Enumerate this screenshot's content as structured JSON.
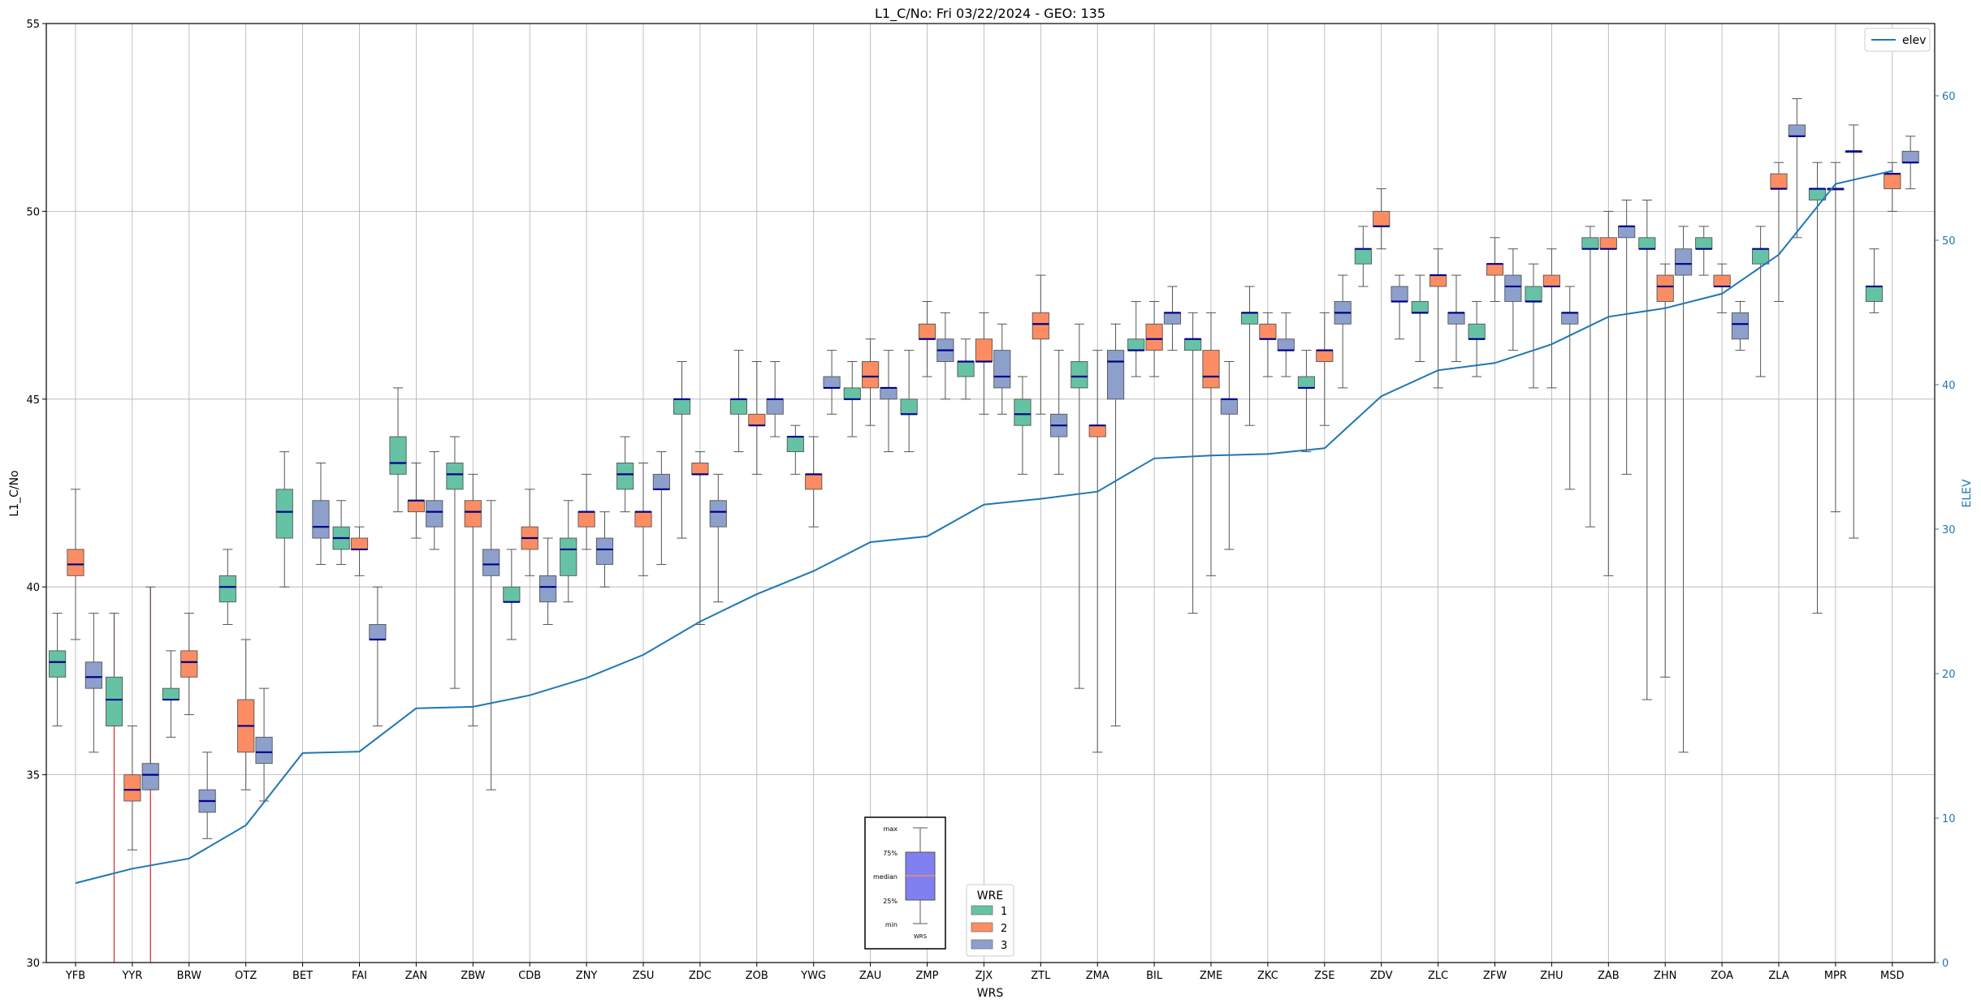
{
  "chart_data": {
    "type": "box",
    "title": "L1_C/No: Fri 03/22/2024 - GEO: 135",
    "xlabel": "WRS",
    "ylabel": "L1_C/No",
    "y2label": "ELEV",
    "ylim": [
      30,
      55
    ],
    "y2lim": [
      0,
      65
    ],
    "yticks": [
      30,
      35,
      40,
      45,
      50,
      55
    ],
    "y2ticks": [
      0,
      10,
      20,
      30,
      40,
      50,
      60
    ],
    "grid": true,
    "categories": [
      "YFB",
      "YYR",
      "BRW",
      "OTZ",
      "BET",
      "FAI",
      "ZAN",
      "ZBW",
      "CDB",
      "ZNY",
      "ZSU",
      "ZDC",
      "ZOB",
      "YWG",
      "ZAU",
      "ZMP",
      "ZJX",
      "ZTL",
      "ZMA",
      "BIL",
      "ZME",
      "ZKC",
      "ZSE",
      "ZDV",
      "ZLC",
      "ZFW",
      "ZHU",
      "ZAB",
      "ZHN",
      "ZOA",
      "ZLA",
      "MPR",
      "MSD"
    ],
    "colors": {
      "1": "#66c2a5",
      "2": "#fc8d62",
      "3": "#8da0cb",
      "median": "#00008b",
      "elev": "#1f77b4",
      "outlier_line": "#d62728"
    },
    "legend_wre": {
      "title": "WRE",
      "entries": [
        "1",
        "2",
        "3"
      ],
      "position": "lower-center"
    },
    "legend_elev": {
      "label": "elev",
      "position": "top-right"
    },
    "inset_key": {
      "labels": [
        "max",
        "75%",
        "median",
        "25%",
        "min"
      ],
      "xlabel": "WRS",
      "position": "lower-center"
    },
    "elev_series": {
      "name": "elev",
      "values": [
        5.5,
        6.5,
        7.2,
        9.5,
        14.5,
        14.6,
        17.6,
        17.7,
        18.5,
        19.7,
        21.3,
        23.6,
        25.5,
        27.1,
        29.1,
        29.5,
        31.7,
        32.1,
        32.6,
        34.9,
        35.1,
        35.2,
        35.6,
        39.2,
        41.0,
        41.5,
        42.8,
        44.7,
        45.3,
        46.3,
        49.0,
        53.9,
        54.8
      ]
    },
    "boxes": [
      {
        "station": "YFB",
        "wre": 1,
        "min": 36.3,
        "q1": 37.6,
        "median": 38.0,
        "q3": 38.3,
        "max": 39.3
      },
      {
        "station": "YFB",
        "wre": 2,
        "min": 38.6,
        "q1": 40.3,
        "median": 40.6,
        "q3": 41.0,
        "max": 42.6
      },
      {
        "station": "YFB",
        "wre": 3,
        "min": 35.6,
        "q1": 37.3,
        "median": 37.6,
        "q3": 38.0,
        "max": 39.3
      },
      {
        "station": "YYR",
        "wre": 1,
        "min": 36.3,
        "q1": 36.3,
        "median": 37.0,
        "q3": 37.6,
        "max": 39.3,
        "outlier_line": [
          30.0,
          39.3
        ]
      },
      {
        "station": "YYR",
        "wre": 2,
        "min": 33.0,
        "q1": 34.3,
        "median": 34.6,
        "q3": 35.0,
        "max": 36.3
      },
      {
        "station": "YYR",
        "wre": 3,
        "min": 34.6,
        "q1": 34.6,
        "median": 35.0,
        "q3": 35.3,
        "max": 40.0,
        "outlier_line": [
          30.0,
          40.0
        ]
      },
      {
        "station": "BRW",
        "wre": 1,
        "min": 36.0,
        "q1": 37.0,
        "median": 37.0,
        "q3": 37.3,
        "max": 38.3
      },
      {
        "station": "BRW",
        "wre": 2,
        "min": 36.6,
        "q1": 37.6,
        "median": 38.0,
        "q3": 38.3,
        "max": 39.3
      },
      {
        "station": "BRW",
        "wre": 3,
        "min": 33.3,
        "q1": 34.0,
        "median": 34.3,
        "q3": 34.6,
        "max": 35.6
      },
      {
        "station": "OTZ",
        "wre": 1,
        "min": 39.0,
        "q1": 39.6,
        "median": 40.0,
        "q3": 40.3,
        "max": 41.0
      },
      {
        "station": "OTZ",
        "wre": 2,
        "min": 34.6,
        "q1": 35.6,
        "median": 36.3,
        "q3": 37.0,
        "max": 38.6
      },
      {
        "station": "OTZ",
        "wre": 3,
        "min": 34.3,
        "q1": 35.3,
        "median": 35.6,
        "q3": 36.0,
        "max": 37.3
      },
      {
        "station": "BET",
        "wre": 1,
        "min": 40.0,
        "q1": 41.3,
        "median": 42.0,
        "q3": 42.6,
        "max": 43.6
      },
      {
        "station": "BET",
        "wre": 3,
        "min": 40.6,
        "q1": 41.3,
        "median": 41.6,
        "q3": 42.3,
        "max": 43.3
      },
      {
        "station": "FAI",
        "wre": 1,
        "min": 40.6,
        "q1": 41.0,
        "median": 41.3,
        "q3": 41.6,
        "max": 42.3
      },
      {
        "station": "FAI",
        "wre": 2,
        "min": 40.3,
        "q1": 41.0,
        "median": 41.0,
        "q3": 41.3,
        "max": 41.6
      },
      {
        "station": "FAI",
        "wre": 3,
        "min": 36.3,
        "q1": 38.6,
        "median": 38.6,
        "q3": 39.0,
        "max": 40.0
      },
      {
        "station": "ZAN",
        "wre": 1,
        "min": 42.0,
        "q1": 43.0,
        "median": 43.3,
        "q3": 44.0,
        "max": 45.3
      },
      {
        "station": "ZAN",
        "wre": 2,
        "min": 41.3,
        "q1": 42.0,
        "median": 42.3,
        "q3": 42.3,
        "max": 43.3
      },
      {
        "station": "ZAN",
        "wre": 3,
        "min": 41.0,
        "q1": 41.6,
        "median": 42.0,
        "q3": 42.3,
        "max": 43.6
      },
      {
        "station": "ZBW",
        "wre": 1,
        "min": 37.3,
        "q1": 42.6,
        "median": 43.0,
        "q3": 43.3,
        "max": 44.0
      },
      {
        "station": "ZBW",
        "wre": 2,
        "min": 36.3,
        "q1": 41.6,
        "median": 42.0,
        "q3": 42.3,
        "max": 43.0
      },
      {
        "station": "ZBW",
        "wre": 3,
        "min": 34.6,
        "q1": 40.3,
        "median": 40.6,
        "q3": 41.0,
        "max": 42.3
      },
      {
        "station": "CDB",
        "wre": 1,
        "min": 38.6,
        "q1": 39.6,
        "median": 39.6,
        "q3": 40.0,
        "max": 41.0
      },
      {
        "station": "CDB",
        "wre": 2,
        "min": 40.3,
        "q1": 41.0,
        "median": 41.3,
        "q3": 41.6,
        "max": 42.6
      },
      {
        "station": "CDB",
        "wre": 3,
        "min": 39.0,
        "q1": 39.6,
        "median": 40.0,
        "q3": 40.3,
        "max": 41.3
      },
      {
        "station": "ZNY",
        "wre": 1,
        "min": 39.6,
        "q1": 40.3,
        "median": 41.0,
        "q3": 41.3,
        "max": 42.3
      },
      {
        "station": "ZNY",
        "wre": 2,
        "min": 41.0,
        "q1": 41.6,
        "median": 42.0,
        "q3": 42.0,
        "max": 43.0
      },
      {
        "station": "ZNY",
        "wre": 3,
        "min": 40.0,
        "q1": 40.6,
        "median": 41.0,
        "q3": 41.3,
        "max": 42.0
      },
      {
        "station": "ZSU",
        "wre": 1,
        "min": 42.0,
        "q1": 42.6,
        "median": 43.0,
        "q3": 43.3,
        "max": 44.0
      },
      {
        "station": "ZSU",
        "wre": 2,
        "min": 40.3,
        "q1": 41.6,
        "median": 42.0,
        "q3": 42.0,
        "max": 43.3
      },
      {
        "station": "ZSU",
        "wre": 3,
        "min": 40.6,
        "q1": 42.6,
        "median": 42.6,
        "q3": 43.0,
        "max": 43.6
      },
      {
        "station": "ZDC",
        "wre": 1,
        "min": 41.3,
        "q1": 44.6,
        "median": 45.0,
        "q3": 45.0,
        "max": 46.0
      },
      {
        "station": "ZDC",
        "wre": 2,
        "min": 39.0,
        "q1": 43.0,
        "median": 43.0,
        "q3": 43.3,
        "max": 43.6
      },
      {
        "station": "ZDC",
        "wre": 3,
        "min": 39.6,
        "q1": 41.6,
        "median": 42.0,
        "q3": 42.3,
        "max": 43.0
      },
      {
        "station": "ZOB",
        "wre": 1,
        "min": 43.6,
        "q1": 44.6,
        "median": 45.0,
        "q3": 45.0,
        "max": 46.3
      },
      {
        "station": "ZOB",
        "wre": 2,
        "min": 43.0,
        "q1": 44.3,
        "median": 44.3,
        "q3": 44.6,
        "max": 46.0
      },
      {
        "station": "ZOB",
        "wre": 3,
        "min": 44.0,
        "q1": 44.6,
        "median": 45.0,
        "q3": 45.0,
        "max": 46.0
      },
      {
        "station": "YWG",
        "wre": 1,
        "min": 43.0,
        "q1": 43.6,
        "median": 44.0,
        "q3": 44.0,
        "max": 44.3
      },
      {
        "station": "YWG",
        "wre": 2,
        "min": 41.6,
        "q1": 42.6,
        "median": 43.0,
        "q3": 43.0,
        "max": 44.0
      },
      {
        "station": "YWG",
        "wre": 3,
        "min": 44.6,
        "q1": 45.3,
        "median": 45.3,
        "q3": 45.6,
        "max": 46.3
      },
      {
        "station": "ZAU",
        "wre": 1,
        "min": 44.0,
        "q1": 45.0,
        "median": 45.0,
        "q3": 45.3,
        "max": 46.0
      },
      {
        "station": "ZAU",
        "wre": 2,
        "min": 44.3,
        "q1": 45.3,
        "median": 45.6,
        "q3": 46.0,
        "max": 46.6
      },
      {
        "station": "ZAU",
        "wre": 3,
        "min": 43.6,
        "q1": 45.0,
        "median": 45.3,
        "q3": 45.3,
        "max": 46.3
      },
      {
        "station": "ZMP",
        "wre": 1,
        "min": 43.6,
        "q1": 44.6,
        "median": 44.6,
        "q3": 45.0,
        "max": 46.3
      },
      {
        "station": "ZMP",
        "wre": 2,
        "min": 45.6,
        "q1": 46.6,
        "median": 46.6,
        "q3": 47.0,
        "max": 47.6
      },
      {
        "station": "ZMP",
        "wre": 3,
        "min": 45.0,
        "q1": 46.0,
        "median": 46.3,
        "q3": 46.6,
        "max": 47.3
      },
      {
        "station": "ZJX",
        "wre": 1,
        "min": 45.0,
        "q1": 45.6,
        "median": 46.0,
        "q3": 46.0,
        "max": 46.6
      },
      {
        "station": "ZJX",
        "wre": 2,
        "min": 44.6,
        "q1": 46.0,
        "median": 46.0,
        "q3": 46.6,
        "max": 47.3
      },
      {
        "station": "ZJX",
        "wre": 3,
        "min": 44.6,
        "q1": 45.3,
        "median": 45.6,
        "q3": 46.3,
        "max": 47.0
      },
      {
        "station": "ZTL",
        "wre": 1,
        "min": 43.0,
        "q1": 44.3,
        "median": 44.6,
        "q3": 45.0,
        "max": 45.6
      },
      {
        "station": "ZTL",
        "wre": 2,
        "min": 44.6,
        "q1": 46.6,
        "median": 47.0,
        "q3": 47.3,
        "max": 48.3
      },
      {
        "station": "ZTL",
        "wre": 3,
        "min": 43.0,
        "q1": 44.0,
        "median": 44.3,
        "q3": 44.6,
        "max": 46.3
      },
      {
        "station": "ZMA",
        "wre": 1,
        "min": 37.3,
        "q1": 45.3,
        "median": 45.6,
        "q3": 46.0,
        "max": 47.0
      },
      {
        "station": "ZMA",
        "wre": 2,
        "min": 35.6,
        "q1": 44.0,
        "median": 44.3,
        "q3": 44.3,
        "max": 46.3
      },
      {
        "station": "ZMA",
        "wre": 3,
        "min": 36.3,
        "q1": 45.0,
        "median": 46.0,
        "q3": 46.3,
        "max": 47.0
      },
      {
        "station": "BIL",
        "wre": 1,
        "min": 45.6,
        "q1": 46.3,
        "median": 46.3,
        "q3": 46.6,
        "max": 47.6
      },
      {
        "station": "BIL",
        "wre": 2,
        "min": 45.6,
        "q1": 46.3,
        "median": 46.6,
        "q3": 47.0,
        "max": 47.6
      },
      {
        "station": "BIL",
        "wre": 3,
        "min": 46.3,
        "q1": 47.0,
        "median": 47.3,
        "q3": 47.3,
        "max": 48.0
      },
      {
        "station": "ZME",
        "wre": 1,
        "min": 39.3,
        "q1": 46.3,
        "median": 46.6,
        "q3": 46.6,
        "max": 47.3
      },
      {
        "station": "ZME",
        "wre": 2,
        "min": 40.3,
        "q1": 45.3,
        "median": 45.6,
        "q3": 46.3,
        "max": 47.3
      },
      {
        "station": "ZME",
        "wre": 3,
        "min": 41.0,
        "q1": 44.6,
        "median": 45.0,
        "q3": 45.0,
        "max": 46.0
      },
      {
        "station": "ZKC",
        "wre": 1,
        "min": 44.3,
        "q1": 47.0,
        "median": 47.3,
        "q3": 47.3,
        "max": 48.0
      },
      {
        "station": "ZKC",
        "wre": 2,
        "min": 45.6,
        "q1": 46.6,
        "median": 46.6,
        "q3": 47.0,
        "max": 47.3
      },
      {
        "station": "ZKC",
        "wre": 3,
        "min": 45.6,
        "q1": 46.3,
        "median": 46.3,
        "q3": 46.6,
        "max": 47.3
      },
      {
        "station": "ZSE",
        "wre": 1,
        "min": 43.6,
        "q1": 45.3,
        "median": 45.3,
        "q3": 45.6,
        "max": 46.3
      },
      {
        "station": "ZSE",
        "wre": 2,
        "min": 44.3,
        "q1": 46.0,
        "median": 46.3,
        "q3": 46.3,
        "max": 47.3
      },
      {
        "station": "ZSE",
        "wre": 3,
        "min": 45.3,
        "q1": 47.0,
        "median": 47.3,
        "q3": 47.6,
        "max": 48.3
      },
      {
        "station": "ZDV",
        "wre": 1,
        "min": 48.0,
        "q1": 48.6,
        "median": 49.0,
        "q3": 49.0,
        "max": 49.6
      },
      {
        "station": "ZDV",
        "wre": 2,
        "min": 49.0,
        "q1": 49.6,
        "median": 49.6,
        "q3": 50.0,
        "max": 50.6
      },
      {
        "station": "ZDV",
        "wre": 3,
        "min": 46.6,
        "q1": 47.6,
        "median": 47.6,
        "q3": 48.0,
        "max": 48.3
      },
      {
        "station": "ZLC",
        "wre": 1,
        "min": 46.0,
        "q1": 47.3,
        "median": 47.3,
        "q3": 47.6,
        "max": 48.3
      },
      {
        "station": "ZLC",
        "wre": 2,
        "min": 45.3,
        "q1": 48.0,
        "median": 48.3,
        "q3": 48.3,
        "max": 49.0
      },
      {
        "station": "ZLC",
        "wre": 3,
        "min": 46.0,
        "q1": 47.0,
        "median": 47.3,
        "q3": 47.3,
        "max": 48.3
      },
      {
        "station": "ZFW",
        "wre": 1,
        "min": 45.6,
        "q1": 46.6,
        "median": 46.6,
        "q3": 47.0,
        "max": 47.6
      },
      {
        "station": "ZFW",
        "wre": 2,
        "min": 47.6,
        "q1": 48.3,
        "median": 48.6,
        "q3": 48.6,
        "max": 49.3
      },
      {
        "station": "ZFW",
        "wre": 3,
        "min": 46.3,
        "q1": 47.6,
        "median": 48.0,
        "q3": 48.3,
        "max": 49.0
      },
      {
        "station": "ZHU",
        "wre": 1,
        "min": 45.3,
        "q1": 47.6,
        "median": 47.6,
        "q3": 48.0,
        "max": 48.6
      },
      {
        "station": "ZHU",
        "wre": 2,
        "min": 45.3,
        "q1": 48.0,
        "median": 48.0,
        "q3": 48.3,
        "max": 49.0
      },
      {
        "station": "ZHU",
        "wre": 3,
        "min": 42.6,
        "q1": 47.0,
        "median": 47.3,
        "q3": 47.3,
        "max": 48.0
      },
      {
        "station": "ZAB",
        "wre": 1,
        "min": 41.6,
        "q1": 49.0,
        "median": 49.0,
        "q3": 49.3,
        "max": 49.6
      },
      {
        "station": "ZAB",
        "wre": 2,
        "min": 40.3,
        "q1": 49.0,
        "median": 49.0,
        "q3": 49.3,
        "max": 50.0
      },
      {
        "station": "ZAB",
        "wre": 3,
        "min": 43.0,
        "q1": 49.3,
        "median": 49.6,
        "q3": 49.6,
        "max": 50.3
      },
      {
        "station": "ZHN",
        "wre": 1,
        "min": 37.0,
        "q1": 49.0,
        "median": 49.0,
        "q3": 49.3,
        "max": 50.3
      },
      {
        "station": "ZHN",
        "wre": 2,
        "min": 37.6,
        "q1": 47.6,
        "median": 48.0,
        "q3": 48.3,
        "max": 48.6
      },
      {
        "station": "ZHN",
        "wre": 3,
        "min": 35.6,
        "q1": 48.3,
        "median": 48.6,
        "q3": 49.0,
        "max": 49.6
      },
      {
        "station": "ZOA",
        "wre": 1,
        "min": 48.3,
        "q1": 49.0,
        "median": 49.0,
        "q3": 49.3,
        "max": 49.6
      },
      {
        "station": "ZOA",
        "wre": 2,
        "min": 47.3,
        "q1": 48.0,
        "median": 48.0,
        "q3": 48.3,
        "max": 48.6
      },
      {
        "station": "ZOA",
        "wre": 3,
        "min": 46.3,
        "q1": 46.6,
        "median": 47.0,
        "q3": 47.3,
        "max": 47.6
      },
      {
        "station": "ZLA",
        "wre": 1,
        "min": 45.6,
        "q1": 48.6,
        "median": 49.0,
        "q3": 49.0,
        "max": 49.6
      },
      {
        "station": "ZLA",
        "wre": 2,
        "min": 47.6,
        "q1": 50.6,
        "median": 50.6,
        "q3": 51.0,
        "max": 51.3
      },
      {
        "station": "ZLA",
        "wre": 3,
        "min": 49.3,
        "q1": 52.0,
        "median": 52.0,
        "q3": 52.3,
        "max": 53.0
      },
      {
        "station": "MPR",
        "wre": 1,
        "min": 39.3,
        "q1": 50.3,
        "median": 50.6,
        "q3": 50.6,
        "max": 51.3
      },
      {
        "station": "MPR",
        "wre": 2,
        "min": 42.0,
        "q1": 50.6,
        "median": 50.6,
        "q3": 50.6,
        "max": 51.3
      },
      {
        "station": "MPR",
        "wre": 3,
        "min": 41.3,
        "q1": 51.6,
        "median": 51.6,
        "q3": 51.6,
        "max": 52.3
      },
      {
        "station": "MSD",
        "wre": 1,
        "min": 47.3,
        "q1": 47.6,
        "median": 48.0,
        "q3": 48.0,
        "max": 49.0
      },
      {
        "station": "MSD",
        "wre": 2,
        "min": 50.0,
        "q1": 50.6,
        "median": 51.0,
        "q3": 51.0,
        "max": 51.3
      },
      {
        "station": "MSD",
        "wre": 3,
        "min": 50.6,
        "q1": 51.3,
        "median": 51.3,
        "q3": 51.6,
        "max": 52.0
      }
    ]
  }
}
